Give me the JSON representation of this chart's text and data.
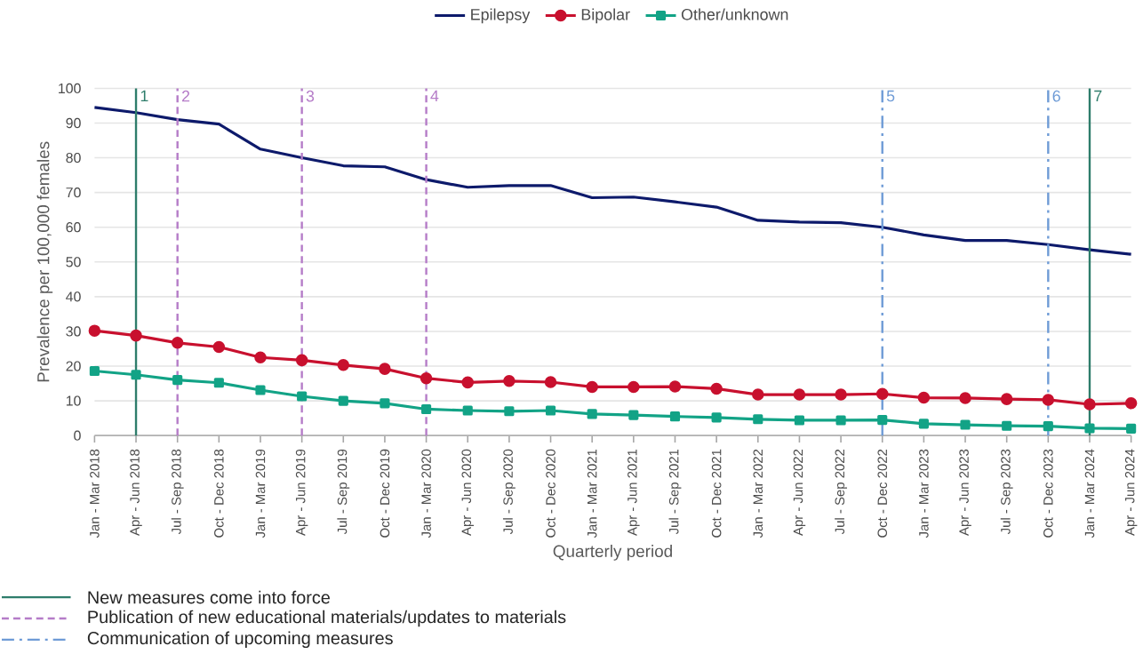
{
  "chart_data": {
    "type": "line",
    "xlabel": "Quarterly period",
    "ylabel": "Prevalence per 100,000 females",
    "categories": [
      "Jan - Mar 2018",
      "Apr - Jun 2018",
      "Jul - Sep 2018",
      "Oct - Dec 2018",
      "Jan - Mar 2019",
      "Apr - Jun 2019",
      "Jul - Sep 2019",
      "Oct - Dec 2019",
      "Jan - Mar 2020",
      "Apr - Jun 2020",
      "Jul - Sep 2020",
      "Oct - Dec 2020",
      "Jan - Mar 2021",
      "Apr - Jun 2021",
      "Jul - Sep 2021",
      "Oct - Dec 2021",
      "Jan - Mar 2022",
      "Apr - Jun 2022",
      "Jul - Sep 2022",
      "Oct - Dec 2022",
      "Jan - Mar 2023",
      "Apr - Jun 2023",
      "Jul - Sep 2023",
      "Oct - Dec 2023",
      "Jan - Mar 2024",
      "Apr - Jun 2024"
    ],
    "series": [
      {
        "name": "Epilepsy",
        "color": "#0d1a6b",
        "marker": "none",
        "values": [
          94.5,
          93,
          91,
          89.7,
          82.5,
          80,
          77.7,
          77.4,
          73.7,
          71.5,
          72,
          72,
          68.5,
          68.7,
          67.3,
          65.8,
          62,
          61.5,
          61.3,
          60,
          57.8,
          56.2,
          56.2,
          55,
          53.5,
          52.2
        ]
      },
      {
        "name": "Bipolar",
        "color": "#c8102e",
        "marker": "circle",
        "values": [
          30.2,
          28.8,
          26.7,
          25.5,
          22.5,
          21.7,
          20.3,
          19.2,
          16.5,
          15.3,
          15.7,
          15.4,
          14,
          14,
          14.1,
          13.5,
          11.8,
          11.8,
          11.8,
          12,
          10.9,
          10.8,
          10.5,
          10.3,
          9,
          9.3
        ]
      },
      {
        "name": "Other/unknown",
        "color": "#12a386",
        "marker": "square",
        "values": [
          18.6,
          17.5,
          16,
          15.2,
          13.1,
          11.3,
          10,
          9.3,
          7.6,
          7.2,
          7,
          7.2,
          6.2,
          5.9,
          5.5,
          5.2,
          4.7,
          4.4,
          4.4,
          4.5,
          3.4,
          3.1,
          2.8,
          2.7,
          2.1,
          2
        ]
      }
    ],
    "ylim": [
      0,
      100
    ],
    "yticks": [
      0,
      10,
      20,
      30,
      40,
      50,
      60,
      70,
      80,
      90,
      100
    ],
    "grid": "y",
    "legend": "top",
    "ref_lines": [
      {
        "axis": "x",
        "value": "Apr - Jun 2018",
        "label": "1",
        "color": "#2e7d6b",
        "line_style": "solid"
      },
      {
        "axis": "x",
        "value": "Jul - Sep 2018",
        "label": "2",
        "color": "#b57cc8",
        "line_style": "dashed"
      },
      {
        "axis": "x",
        "value": "Apr - Jun 2019",
        "label": "3",
        "color": "#b57cc8",
        "line_style": "dashed"
      },
      {
        "axis": "x",
        "value": "Jan - Mar 2020",
        "label": "4",
        "color": "#b57cc8",
        "line_style": "dashed"
      },
      {
        "axis": "x",
        "value": "Oct - Dec 2022",
        "label": "5",
        "color": "#6e9bd6",
        "line_style": "dashdot"
      },
      {
        "axis": "x",
        "value": "Oct - Dec 2023",
        "label": "6",
        "color": "#6e9bd6",
        "line_style": "dashdot"
      },
      {
        "axis": "x",
        "value": "Jan - Mar 2024",
        "label": "7",
        "color": "#2e7d6b",
        "line_style": "solid"
      }
    ],
    "annotations": [
      "New measures come into force",
      "Publication of new educational materials/updates to materials",
      "Communication of upcoming measures"
    ]
  }
}
